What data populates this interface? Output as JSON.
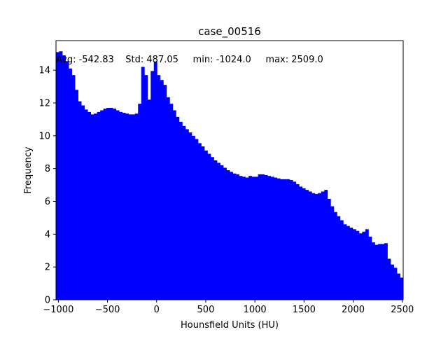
{
  "chart_data": {
    "type": "bar",
    "title": "case_00516",
    "xlabel": "Hounsfield Units (HU)",
    "ylabel": "Frequency",
    "annotation": "Avg: -542.83    Std: 487.05     min: -1024.0     max: 2509.0",
    "xlim": [
      -1024,
      2509
    ],
    "ylim": [
      0,
      15.8
    ],
    "xticks": [
      -1000,
      -500,
      0,
      500,
      1000,
      1500,
      2000,
      2500
    ],
    "xtick_labels": [
      "−1000",
      "−500",
      "0",
      "500",
      "1000",
      "1500",
      "2000",
      "2500"
    ],
    "yticks": [
      0,
      2,
      4,
      6,
      8,
      10,
      12,
      14
    ],
    "ytick_labels": [
      "0",
      "2",
      "4",
      "6",
      "8",
      "10",
      "12",
      "14"
    ],
    "bin_width": 35.33,
    "grid": false,
    "bar_color": "#0000ff",
    "values": [
      15.1,
      15.15,
      14.9,
      14.55,
      14.1,
      13.7,
      12.8,
      12.1,
      11.85,
      11.6,
      11.45,
      11.3,
      11.35,
      11.45,
      11.55,
      11.65,
      11.7,
      11.7,
      11.65,
      11.55,
      11.45,
      11.4,
      11.35,
      11.3,
      11.3,
      11.35,
      11.95,
      14.2,
      13.7,
      12.2,
      13.95,
      14.5,
      13.7,
      13.4,
      13.1,
      12.35,
      11.95,
      11.55,
      11.15,
      10.85,
      10.6,
      10.4,
      10.2,
      10.0,
      9.8,
      9.55,
      9.35,
      9.1,
      8.9,
      8.7,
      8.5,
      8.35,
      8.2,
      8.05,
      7.9,
      7.8,
      7.7,
      7.65,
      7.55,
      7.5,
      7.45,
      7.55,
      7.5,
      7.5,
      7.65,
      7.65,
      7.6,
      7.55,
      7.5,
      7.45,
      7.4,
      7.35,
      7.35,
      7.35,
      7.3,
      7.2,
      7.05,
      6.9,
      6.8,
      6.7,
      6.6,
      6.5,
      6.45,
      6.5,
      6.6,
      6.7,
      6.15,
      5.7,
      5.35,
      5.1,
      4.85,
      4.6,
      4.5,
      4.4,
      4.3,
      4.2,
      4.05,
      4.15,
      4.3,
      3.85,
      3.5,
      3.35,
      3.4,
      3.4,
      3.45,
      2.5,
      2.15,
      1.95,
      1.6,
      1.35
    ]
  }
}
